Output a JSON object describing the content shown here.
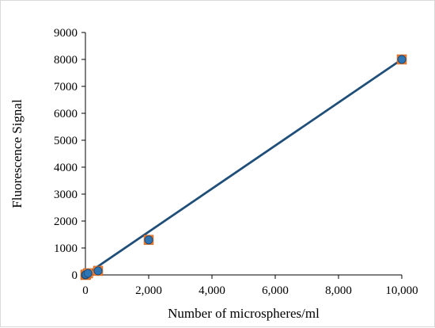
{
  "chart_data": {
    "type": "scatter",
    "title": "",
    "xlabel": "Number of microspheres/ml",
    "ylabel": "Fluorescence Signal",
    "xlim": [
      0,
      10000
    ],
    "ylim": [
      0,
      9000
    ],
    "x_ticks": [
      0,
      2000,
      4000,
      6000,
      8000,
      10000
    ],
    "x_tick_labels": [
      "0",
      "2,000",
      "4,000",
      "6,000",
      "8,000",
      "10,000"
    ],
    "y_ticks": [
      0,
      1000,
      2000,
      3000,
      4000,
      5000,
      6000,
      7000,
      8000,
      9000
    ],
    "y_tick_labels": [
      "0",
      "1000",
      "2000",
      "3000",
      "4000",
      "5000",
      "6000",
      "7000",
      "8000",
      "9000"
    ],
    "grid": false,
    "legend": "none",
    "series": [
      {
        "marker": "square",
        "color": "#ED7D31",
        "points": [
          {
            "x": 0,
            "y": 0
          },
          {
            "x": 16,
            "y": 12
          },
          {
            "x": 80,
            "y": 60
          },
          {
            "x": 400,
            "y": 150
          },
          {
            "x": 2000,
            "y": 1300
          },
          {
            "x": 10000,
            "y": 8000
          }
        ]
      },
      {
        "marker": "circle",
        "color": "#2E75B6",
        "points": [
          {
            "x": 0,
            "y": 0
          },
          {
            "x": 16,
            "y": 12
          },
          {
            "x": 80,
            "y": 60
          },
          {
            "x": 400,
            "y": 150
          },
          {
            "x": 2000,
            "y": 1300
          },
          {
            "x": 10000,
            "y": 8000
          }
        ]
      }
    ],
    "trendline": {
      "type": "linear",
      "color": "#1F4E79",
      "from": {
        "x": 0,
        "y": 0
      },
      "to": {
        "x": 10000,
        "y": 8000
      }
    }
  }
}
